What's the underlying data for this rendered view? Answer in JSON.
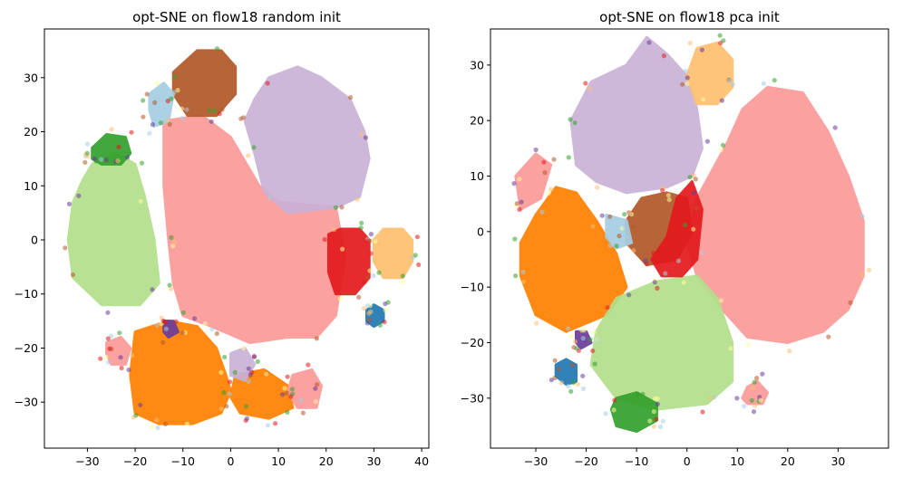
{
  "chart_data": [
    {
      "type": "scatter",
      "title": "opt-SNE on flow18 random init",
      "xlim": [
        -39,
        41.5
      ],
      "ylim": [
        -38.5,
        39
      ],
      "xticks": [
        -30,
        -20,
        -10,
        0,
        10,
        20,
        30,
        40
      ],
      "yticks": [
        -30,
        -20,
        -10,
        0,
        10,
        20,
        30
      ],
      "xtick_labels": [
        "−30",
        "−20",
        "−10",
        "0",
        "10",
        "20",
        "30",
        "40"
      ],
      "ytick_labels": [
        "−30",
        "−20",
        "−10",
        "0",
        "10",
        "20",
        "30"
      ],
      "grid": false,
      "clusters": [
        {
          "color": "#fb9a99",
          "polygon": [
            [
              -14,
              22
            ],
            [
              -6,
              23
            ],
            [
              0,
              19
            ],
            [
              6,
              10
            ],
            [
              10,
              7
            ],
            [
              22,
              6
            ],
            [
              24,
              -3
            ],
            [
              22,
              -14
            ],
            [
              18,
              -18
            ],
            [
              12,
              -18
            ],
            [
              4,
              -19
            ],
            [
              -4,
              -16
            ],
            [
              -10,
              -14
            ],
            [
              -12,
              -8
            ],
            [
              -13,
              0
            ],
            [
              -14,
              10
            ]
          ]
        },
        {
          "color": "#cab2d6",
          "polygon": [
            [
              5,
              26
            ],
            [
              8,
              30
            ],
            [
              14,
              32
            ],
            [
              19,
              30
            ],
            [
              25,
              26
            ],
            [
              28,
              20
            ],
            [
              29,
              15
            ],
            [
              27,
              8
            ],
            [
              22,
              6
            ],
            [
              12,
              5
            ],
            [
              7,
              9
            ],
            [
              5,
              16
            ],
            [
              3,
              22
            ]
          ]
        },
        {
          "color": "#b2df8a",
          "polygon": [
            [
              -29,
              14
            ],
            [
              -24,
              16
            ],
            [
              -20,
              14
            ],
            [
              -18,
              8
            ],
            [
              -16,
              0
            ],
            [
              -15,
              -8
            ],
            [
              -19,
              -12
            ],
            [
              -27,
              -12
            ],
            [
              -33,
              -7
            ],
            [
              -34,
              0
            ],
            [
              -33,
              7
            ],
            [
              -31,
              11
            ]
          ]
        },
        {
          "color": "#ff7f00",
          "polygon": [
            [
              -20,
              -17
            ],
            [
              -13,
              -15
            ],
            [
              -7,
              -16
            ],
            [
              -3,
              -20
            ],
            [
              -1,
              -25
            ],
            [
              0,
              -28
            ],
            [
              -2,
              -32
            ],
            [
              -8,
              -34
            ],
            [
              -15,
              -34
            ],
            [
              -20,
              -32
            ],
            [
              -21,
              -25
            ]
          ]
        },
        {
          "color": "#ff7f00",
          "polygon": [
            [
              1,
              -25
            ],
            [
              7,
              -24
            ],
            [
              12,
              -27
            ],
            [
              13,
              -31
            ],
            [
              8,
              -33
            ],
            [
              2,
              -32
            ],
            [
              0,
              -29
            ]
          ]
        },
        {
          "color": "#cab2d6",
          "polygon": [
            [
              0,
              -21
            ],
            [
              3,
              -20
            ],
            [
              5,
              -23
            ],
            [
              3,
              -26
            ],
            [
              0,
              -25
            ]
          ]
        },
        {
          "color": "#fb9a99",
          "polygon": [
            [
              13,
              -25
            ],
            [
              17,
              -24
            ],
            [
              19,
              -27
            ],
            [
              18,
              -31
            ],
            [
              14,
              -31
            ],
            [
              12,
              -28
            ]
          ]
        },
        {
          "color": "#b15928",
          "polygon": [
            [
              -12,
              31
            ],
            [
              -7,
              35
            ],
            [
              -2,
              35
            ],
            [
              1,
              32
            ],
            [
              1,
              27
            ],
            [
              -3,
              23
            ],
            [
              -9,
              23
            ],
            [
              -12,
              27
            ]
          ]
        },
        {
          "color": "#a6cee3",
          "polygon": [
            [
              -17,
              27
            ],
            [
              -14,
              29
            ],
            [
              -12,
              27
            ],
            [
              -13,
              22
            ],
            [
              -16,
              21
            ],
            [
              -17,
              24
            ]
          ]
        },
        {
          "color": "#33a02c",
          "polygon": [
            [
              -29,
              17
            ],
            [
              -26,
              19.5
            ],
            [
              -22,
              19
            ],
            [
              -21,
              16
            ],
            [
              -23,
              14
            ],
            [
              -27,
              14
            ],
            [
              -29,
              15
            ]
          ]
        },
        {
          "color": "#e31a1c",
          "polygon": [
            [
              20.5,
              1
            ],
            [
              23,
              2
            ],
            [
              27,
              2
            ],
            [
              29,
              0
            ],
            [
              29,
              -7
            ],
            [
              26,
              -10
            ],
            [
              22,
              -10
            ],
            [
              20.5,
              -6
            ]
          ]
        },
        {
          "color": "#fdbf6f",
          "polygon": [
            [
              30,
              0
            ],
            [
              32,
              2
            ],
            [
              36,
              2
            ],
            [
              38,
              0
            ],
            [
              38,
              -4
            ],
            [
              36,
              -7
            ],
            [
              32,
              -7
            ],
            [
              30,
              -4
            ]
          ]
        },
        {
          "color": "#1f78b4",
          "polygon": [
            [
              28.5,
              -13
            ],
            [
              30,
              -12
            ],
            [
              32,
              -13
            ],
            [
              32,
              -15
            ],
            [
              30,
              -16
            ],
            [
              28.5,
              -15
            ]
          ]
        },
        {
          "color": "#fb9a99",
          "polygon": [
            [
              -26,
              -19
            ],
            [
              -23,
              -18
            ],
            [
              -21,
              -20
            ],
            [
              -22,
              -23
            ],
            [
              -25,
              -23
            ],
            [
              -26,
              -21
            ]
          ]
        },
        {
          "color": "#6a3d9a",
          "polygon": [
            [
              -14,
              -15
            ],
            [
              -12,
              -15
            ],
            [
              -11,
              -17
            ],
            [
              -13,
              -18
            ],
            [
              -14,
              -17
            ]
          ]
        }
      ]
    },
    {
      "type": "scatter",
      "title": "opt-SNE on flow18 pca init",
      "xlim": [
        -39,
        40
      ],
      "ylim": [
        -39,
        36.5
      ],
      "xticks": [
        -30,
        -20,
        -10,
        0,
        10,
        20,
        30
      ],
      "yticks": [
        -30,
        -20,
        -10,
        0,
        10,
        20,
        30
      ],
      "xtick_labels": [
        "−30",
        "−20",
        "−10",
        "0",
        "10",
        "20",
        "30"
      ],
      "ytick_labels": [
        "−30",
        "−20",
        "−10",
        "0",
        "10",
        "20",
        "30"
      ],
      "grid": false,
      "clusters": [
        {
          "color": "#fb9a99",
          "polygon": [
            [
              2,
              6
            ],
            [
              8,
              16
            ],
            [
              11,
              22
            ],
            [
              16,
              26
            ],
            [
              23,
              25
            ],
            [
              28,
              18
            ],
            [
              32,
              10
            ],
            [
              35,
              2
            ],
            [
              35,
              -8
            ],
            [
              32,
              -14
            ],
            [
              27,
              -18
            ],
            [
              20,
              -20
            ],
            [
              12,
              -19
            ],
            [
              7,
              -14
            ],
            [
              2,
              -8
            ],
            [
              0,
              -2
            ]
          ]
        },
        {
          "color": "#cab2d6",
          "polygon": [
            [
              -23,
              20
            ],
            [
              -19,
              27
            ],
            [
              -12,
              30
            ],
            [
              -8,
              35
            ],
            [
              -4,
              32
            ],
            [
              0,
              28
            ],
            [
              2,
              22
            ],
            [
              3,
              15
            ],
            [
              1,
              10
            ],
            [
              -4,
              8
            ],
            [
              -12,
              7
            ],
            [
              -18,
              9
            ],
            [
              -22,
              12
            ]
          ]
        },
        {
          "color": "#ff7f00",
          "polygon": [
            [
              -33,
              -2
            ],
            [
              -30,
              3
            ],
            [
              -26,
              8
            ],
            [
              -22,
              7
            ],
            [
              -18,
              2
            ],
            [
              -14,
              -4
            ],
            [
              -12,
              -10
            ],
            [
              -16,
              -15
            ],
            [
              -24,
              -18
            ],
            [
              -30,
              -15
            ],
            [
              -33,
              -8
            ]
          ]
        },
        {
          "color": "#b2df8a",
          "polygon": [
            [
              -18,
              -18
            ],
            [
              -14,
              -12
            ],
            [
              -6,
              -9
            ],
            [
              2,
              -8
            ],
            [
              6,
              -12
            ],
            [
              9,
              -20
            ],
            [
              9,
              -27
            ],
            [
              4,
              -31
            ],
            [
              -6,
              -32
            ],
            [
              -14,
              -30
            ],
            [
              -19,
              -24
            ]
          ]
        },
        {
          "color": "#b15928",
          "polygon": [
            [
              -12,
              2
            ],
            [
              -9,
              6
            ],
            [
              -4,
              7
            ],
            [
              0,
              6
            ],
            [
              1,
              0
            ],
            [
              -2,
              -5
            ],
            [
              -8,
              -6
            ],
            [
              -12,
              -2
            ]
          ]
        },
        {
          "color": "#e31a1c",
          "polygon": [
            [
              -7,
              -5
            ],
            [
              -4,
              -1
            ],
            [
              -2,
              6
            ],
            [
              1,
              9
            ],
            [
              3,
              4
            ],
            [
              2,
              -5
            ],
            [
              -1,
              -8
            ],
            [
              -5,
              -8
            ]
          ]
        },
        {
          "color": "#a6cee3",
          "polygon": [
            [
              -16,
              3
            ],
            [
              -12,
              2
            ],
            [
              -11,
              -2
            ],
            [
              -14,
              -3
            ],
            [
              -16,
              -1
            ]
          ]
        },
        {
          "color": "#fdbf6f",
          "polygon": [
            [
              0,
              28
            ],
            [
              2,
              33
            ],
            [
              6,
              34
            ],
            [
              9,
              31
            ],
            [
              9,
              26
            ],
            [
              6,
              23
            ],
            [
              2,
              23
            ]
          ]
        },
        {
          "color": "#fb9a99",
          "polygon": [
            [
              -34,
              10
            ],
            [
              -30,
              14
            ],
            [
              -27,
              12
            ],
            [
              -29,
              6
            ],
            [
              -33,
              4
            ]
          ]
        },
        {
          "color": "#33a02c",
          "polygon": [
            [
              -14,
              -30
            ],
            [
              -10,
              -29
            ],
            [
              -6,
              -31
            ],
            [
              -6,
              -34
            ],
            [
              -10,
              -36
            ],
            [
              -14,
              -35
            ],
            [
              -15,
              -32
            ]
          ]
        },
        {
          "color": "#1f78b4",
          "polygon": [
            [
              -26,
              -24
            ],
            [
              -24,
              -23
            ],
            [
              -22,
              -24
            ],
            [
              -22,
              -27
            ],
            [
              -24,
              -27.5
            ],
            [
              -26,
              -26
            ]
          ]
        },
        {
          "color": "#6a3d9a",
          "polygon": [
            [
              -22,
              -18
            ],
            [
              -20,
              -18
            ],
            [
              -19,
              -20
            ],
            [
              -21,
              -21
            ],
            [
              -22,
              -20
            ]
          ]
        },
        {
          "color": "#fb9a99",
          "polygon": [
            [
              12,
              -28
            ],
            [
              14,
              -27
            ],
            [
              16,
              -29
            ],
            [
              15,
              -31
            ],
            [
              12,
              -31
            ],
            [
              11,
              -30
            ]
          ]
        }
      ]
    }
  ]
}
